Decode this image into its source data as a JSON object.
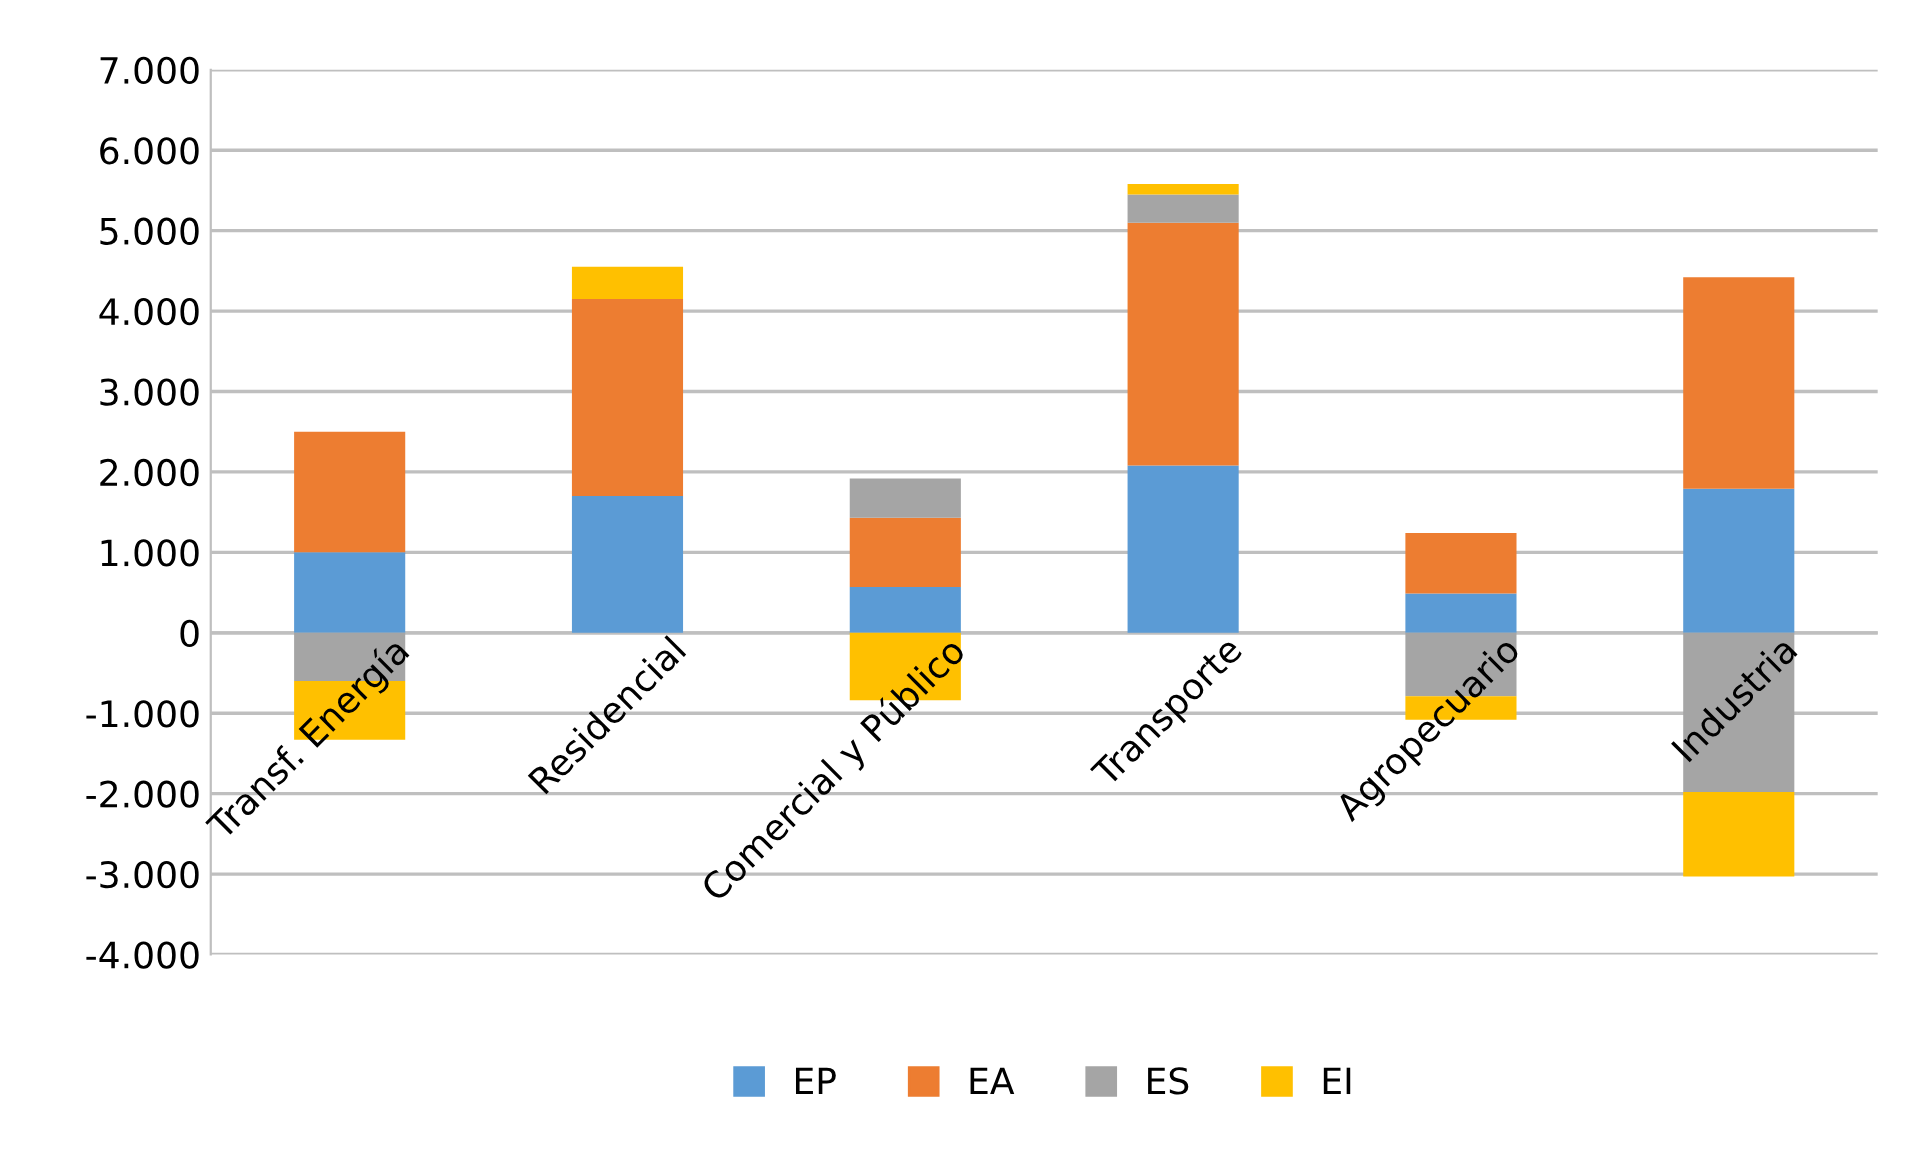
{
  "chart_data": {
    "type": "bar",
    "stacked": true,
    "categories": [
      "Transf. Energía",
      "Residencial",
      "Comercial y Público",
      "Transporte",
      "Agropecuario",
      "Industria"
    ],
    "series": [
      {
        "name": "EP",
        "color": "#5b9bd5",
        "values": [
          1000,
          1700,
          570,
          2080,
          490,
          1790
        ]
      },
      {
        "name": "EA",
        "color": "#ed7d31",
        "values": [
          1500,
          2450,
          860,
          3020,
          750,
          2630
        ]
      },
      {
        "name": "ES",
        "color": "#a5a5a5",
        "values": [
          -600,
          0,
          490,
          350,
          -790,
          -1980
        ]
      },
      {
        "name": "EI",
        "color": "#ffc000",
        "values": [
          -730,
          400,
          -840,
          130,
          -290,
          -1050
        ]
      }
    ],
    "ylim": [
      -4000,
      7000
    ],
    "yticks": [
      {
        "value": -4000,
        "label": "-4.000"
      },
      {
        "value": -3000,
        "label": "-3.000"
      },
      {
        "value": -2000,
        "label": "-2.000"
      },
      {
        "value": -1000,
        "label": "-1.000"
      },
      0,
      {
        "value": 1000,
        "label": "1.000"
      },
      {
        "value": 2000,
        "label": "2.000"
      },
      {
        "value": 3000,
        "label": "3.000"
      },
      {
        "value": 4000,
        "label": "4.000"
      },
      {
        "value": 5000,
        "label": "5.000"
      },
      {
        "value": 6000,
        "label": "6.000"
      },
      {
        "value": 7000,
        "label": "7.000"
      }
    ],
    "grid": "y",
    "legend": "bottom"
  }
}
